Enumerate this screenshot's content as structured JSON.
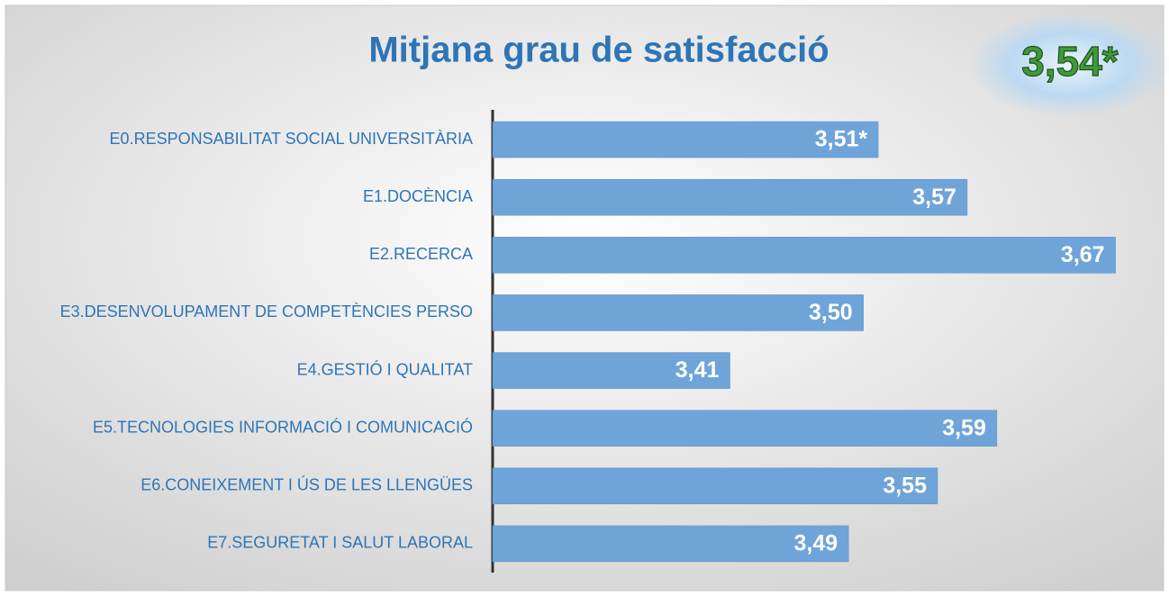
{
  "chart_data": {
    "type": "barh",
    "title": "Mitjana grau de satisfacció",
    "annotation": "3,54*",
    "categories": [
      "E0.RESPONSABILITAT SOCIAL UNIVERSITÀRIA",
      "E1.DOCÈNCIA",
      "E2.RECERCA",
      "E3.DESENVOLUPAMENT DE COMPETÈNCIES PERSO",
      "E4.GESTIÓ I QUALITAT",
      "E5.TECNOLOGIES INFORMACIÓ I COMUNICACIÓ",
      "E6.CONEIXEMENT I ÚS DE LES LLENGÜES",
      "E7.SEGURETAT I SALUT LABORAL"
    ],
    "values": [
      3.51,
      3.57,
      3.67,
      3.5,
      3.41,
      3.59,
      3.55,
      3.49
    ],
    "value_labels": [
      "3,51*",
      "3,57",
      "3,67",
      "3,50",
      "3,41",
      "3,59",
      "3,55",
      "3,49"
    ],
    "color": "#6fa4d9",
    "xlim": [
      3.25,
      3.7
    ]
  }
}
